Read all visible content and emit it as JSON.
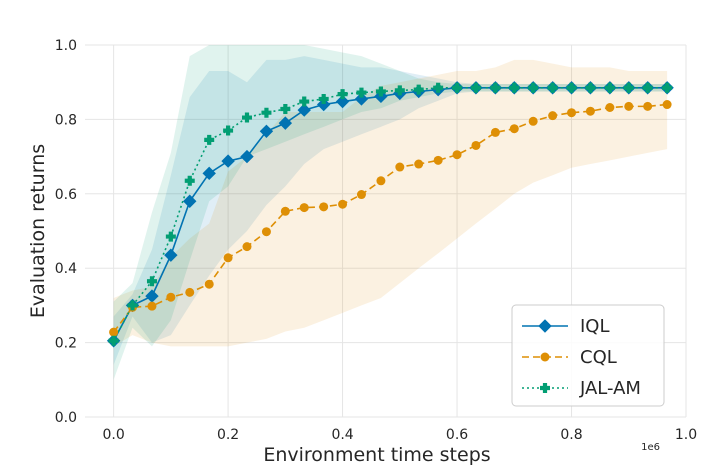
{
  "chart_data": {
    "type": "line",
    "xlabel": "Environment time steps",
    "ylabel": "Evaluation returns",
    "x_scale_label": "1e6",
    "xlim": [
      -0.05,
      1.0
    ],
    "ylim": [
      0.0,
      1.0
    ],
    "xticks": [
      "0.0",
      "0.2",
      "0.4",
      "0.6",
      "0.8",
      "1.0"
    ],
    "yticks": [
      "0.0",
      "0.2",
      "0.4",
      "0.6",
      "0.8",
      "1.0"
    ],
    "grid": true,
    "legend_position": "lower-right",
    "x": [
      0.0,
      0.033,
      0.067,
      0.1,
      0.133,
      0.167,
      0.2,
      0.233,
      0.267,
      0.3,
      0.333,
      0.367,
      0.4,
      0.433,
      0.467,
      0.5,
      0.533,
      0.567,
      0.6,
      0.633,
      0.667,
      0.7,
      0.733,
      0.767,
      0.8,
      0.833,
      0.867,
      0.9,
      0.933,
      0.967
    ],
    "series": [
      {
        "name": "IQL",
        "color": "#0173b2",
        "style": "solid",
        "marker": "diamond",
        "values": [
          0.205,
          0.3,
          0.325,
          0.435,
          0.58,
          0.655,
          0.688,
          0.7,
          0.768,
          0.79,
          0.825,
          0.84,
          0.848,
          0.855,
          0.862,
          0.87,
          0.875,
          0.88,
          0.885,
          0.885,
          0.885,
          0.885,
          0.885,
          0.885,
          0.885,
          0.885,
          0.885,
          0.885,
          0.885,
          0.885
        ],
        "lower": [
          0.14,
          0.27,
          0.2,
          0.22,
          0.3,
          0.38,
          0.45,
          0.5,
          0.57,
          0.62,
          0.68,
          0.72,
          0.74,
          0.76,
          0.78,
          0.8,
          0.83,
          0.85,
          0.87,
          0.875,
          0.875,
          0.875,
          0.875,
          0.875,
          0.875,
          0.875,
          0.875,
          0.875,
          0.875,
          0.875
        ],
        "upper": [
          0.27,
          0.33,
          0.45,
          0.65,
          0.86,
          0.93,
          0.93,
          0.9,
          0.96,
          0.96,
          0.97,
          0.96,
          0.95,
          0.94,
          0.94,
          0.93,
          0.92,
          0.91,
          0.9,
          0.895,
          0.895,
          0.895,
          0.895,
          0.895,
          0.895,
          0.895,
          0.895,
          0.895,
          0.895,
          0.895
        ]
      },
      {
        "name": "CQL",
        "color": "#de8f05",
        "style": "dashed",
        "marker": "circle",
        "values": [
          0.228,
          0.295,
          0.298,
          0.322,
          0.335,
          0.357,
          0.428,
          0.458,
          0.498,
          0.553,
          0.563,
          0.565,
          0.572,
          0.598,
          0.635,
          0.672,
          0.68,
          0.69,
          0.705,
          0.73,
          0.765,
          0.775,
          0.795,
          0.81,
          0.818,
          0.822,
          0.832,
          0.835,
          0.835,
          0.84
        ],
        "lower": [
          0.19,
          0.22,
          0.2,
          0.19,
          0.19,
          0.19,
          0.19,
          0.2,
          0.21,
          0.23,
          0.24,
          0.26,
          0.28,
          0.3,
          0.32,
          0.36,
          0.4,
          0.44,
          0.48,
          0.52,
          0.56,
          0.6,
          0.63,
          0.65,
          0.67,
          0.68,
          0.69,
          0.7,
          0.71,
          0.72
        ],
        "upper": [
          0.32,
          0.34,
          0.35,
          0.43,
          0.48,
          0.52,
          0.66,
          0.7,
          0.76,
          0.82,
          0.82,
          0.82,
          0.82,
          0.86,
          0.89,
          0.9,
          0.91,
          0.92,
          0.93,
          0.93,
          0.94,
          0.96,
          0.96,
          0.95,
          0.94,
          0.94,
          0.94,
          0.93,
          0.93,
          0.93
        ]
      },
      {
        "name": "JAL-AM",
        "color": "#029e73",
        "style": "dotted",
        "marker": "plus",
        "values": [
          0.205,
          0.3,
          0.365,
          0.485,
          0.635,
          0.745,
          0.77,
          0.805,
          0.818,
          0.828,
          0.848,
          0.855,
          0.868,
          0.872,
          0.875,
          0.878,
          0.88,
          0.885,
          0.885,
          0.885,
          0.885,
          0.885,
          0.885,
          0.885,
          0.885,
          0.885,
          0.885,
          0.885,
          0.885,
          0.885
        ],
        "lower": [
          0.1,
          0.24,
          0.19,
          0.26,
          0.42,
          0.58,
          0.62,
          0.7,
          0.72,
          0.74,
          0.76,
          0.78,
          0.8,
          0.82,
          0.83,
          0.85,
          0.86,
          0.87,
          0.875,
          0.875,
          0.875,
          0.875,
          0.875,
          0.875,
          0.875,
          0.875,
          0.875,
          0.875,
          0.875,
          0.875
        ],
        "upper": [
          0.31,
          0.36,
          0.55,
          0.71,
          0.97,
          1.0,
          1.0,
          1.0,
          1.0,
          1.0,
          1.0,
          0.99,
          0.98,
          0.97,
          0.95,
          0.93,
          0.91,
          0.9,
          0.895,
          0.895,
          0.895,
          0.895,
          0.895,
          0.895,
          0.895,
          0.895,
          0.895,
          0.895,
          0.895,
          0.895
        ]
      }
    ]
  }
}
